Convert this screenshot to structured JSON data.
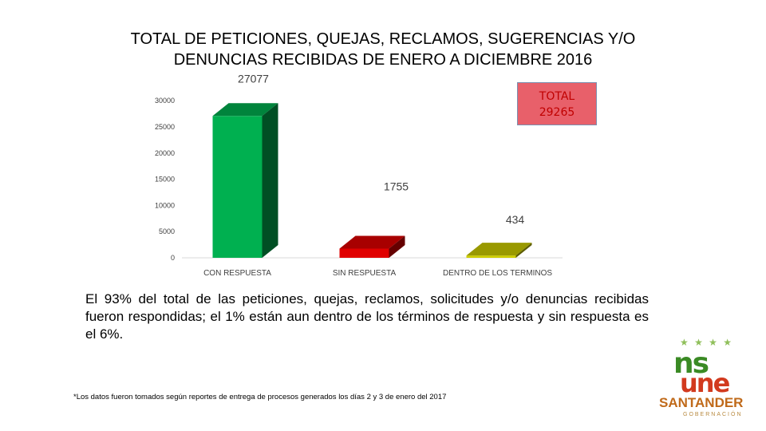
{
  "title_line1": "TOTAL DE PETICIONES, QUEJAS, RECLAMOS, SUGERENCIAS Y/O",
  "title_line2": "DENUNCIAS RECIBIDAS DE ENERO A DICIEMBRE 2016",
  "total_box": {
    "label": "TOTAL",
    "value": "29265"
  },
  "summary": "El 93% del total de las peticiones, quejas, reclamos, solicitudes y/o denuncias recibidas fueron respondidas; el 1% están aun dentro de los términos  de respuesta y sin respuesta es el 6%.",
  "footnote": "*Los datos fueron tomados según reportes de entrega de procesos generados  los días  2 y 3 de enero del 2017",
  "logo": {
    "line1": "ns",
    "line2": "une",
    "line3": "SANTANDER",
    "line4": "GOBERNACIÓN"
  },
  "chart_data": {
    "type": "bar",
    "categories": [
      "CON RESPUESTA",
      "SIN RESPUESTA",
      "DENTRO DE LOS TERMINOS"
    ],
    "values": [
      27077,
      1755,
      434
    ],
    "data_labels": [
      "27077",
      "1755",
      "434"
    ],
    "colors": [
      "#00b050",
      "#e00000",
      "#cccc00"
    ],
    "yticks": [
      0,
      5000,
      10000,
      15000,
      20000,
      25000,
      30000
    ],
    "ylim": [
      0,
      32000
    ],
    "grid": false,
    "style": "3d"
  }
}
